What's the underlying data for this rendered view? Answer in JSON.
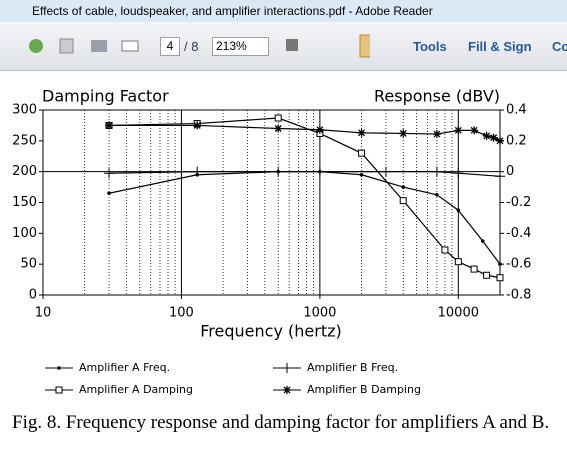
{
  "window": {
    "title": "Effects of cable, loudspeaker, and amplifier interactions.pdf - Adobe Reader"
  },
  "toolbar": {
    "page": "4",
    "pages": "/ 8",
    "zoom": "213%",
    "tools": "Tools",
    "fill_sign": "Fill & Sign",
    "comment": "Co"
  },
  "chart_data": {
    "type": "line",
    "y_label": "Damping Factor",
    "y2_label": "Response (dBV)",
    "x_label": "Frequency (hertz)",
    "xscale": "log",
    "xlim": [
      10,
      20000
    ],
    "xticks": [
      10,
      100,
      1000,
      10000
    ],
    "ylim": [
      0,
      300
    ],
    "yticks": [
      0,
      50,
      100,
      150,
      200,
      250,
      300
    ],
    "y2lim": [
      -0.8,
      0.4
    ],
    "y2ticks": [
      -0.8,
      -0.6,
      -0.4,
      -0.2,
      0,
      0.2,
      0.4
    ],
    "grid": true,
    "series": [
      {
        "name": "Amplifier A Freq.",
        "color": "#000000",
        "marker": "dot",
        "axis": "y2",
        "x": [
          30,
          130,
          500,
          1000,
          2000,
          4000,
          7000,
          10000,
          15000,
          20000
        ],
        "values": [
          -0.14,
          -0.02,
          0,
          0,
          -0.02,
          -0.1,
          -0.15,
          -0.25,
          -0.45,
          -0.6
        ]
      },
      {
        "name": "Amplifier A Damping",
        "color": "#000000",
        "marker": "square",
        "x": [
          30,
          130,
          500,
          1000,
          2000,
          4000,
          8000,
          10000,
          13000,
          16000,
          20000
        ],
        "values": [
          275,
          278,
          287,
          262,
          230,
          153,
          73,
          54,
          42,
          32,
          28
        ]
      },
      {
        "name": "Amplifier B Freq.",
        "color": "#000000",
        "marker": "plus",
        "axis": "y2",
        "x": [
          30,
          130,
          500,
          1000,
          3000,
          7000,
          10000,
          20000
        ],
        "values": [
          -0.01,
          0,
          0,
          0,
          0,
          0,
          -0.01,
          -0.03
        ]
      },
      {
        "name": "Amplifier B Damping",
        "color": "#000000",
        "marker": "star",
        "x": [
          30,
          130,
          500,
          1000,
          2000,
          4000,
          7000,
          10000,
          13000,
          16000,
          18000,
          20000
        ],
        "values": [
          275,
          275,
          270,
          268,
          263,
          262,
          261,
          267,
          267,
          258,
          255,
          250
        ]
      }
    ]
  },
  "caption": "Fig. 8. Frequency response and damping factor for amplifiers A and B."
}
